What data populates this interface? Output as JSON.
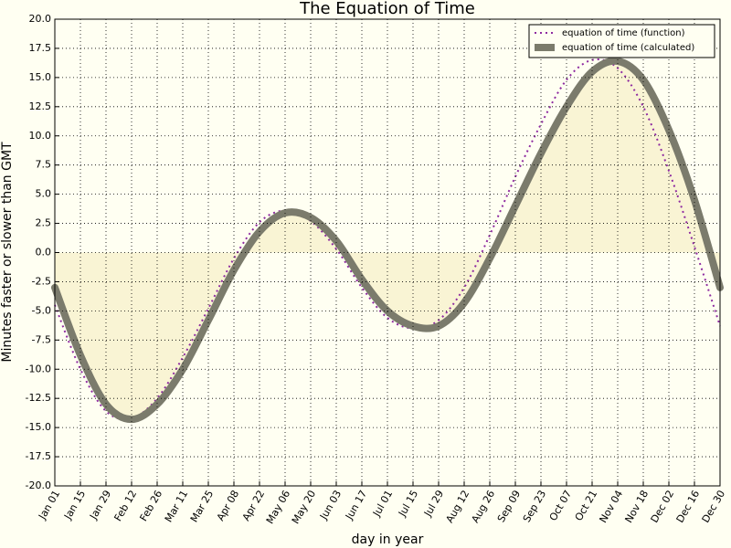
{
  "chart_data": {
    "type": "line",
    "title": "The Equation of Time",
    "x_label": "day in year",
    "y_label": "Minutes faster or slower than GMT",
    "x": [
      0,
      14,
      28,
      42,
      56,
      70,
      84,
      98,
      112,
      126,
      140,
      154,
      168,
      182,
      196,
      210,
      224,
      238,
      252,
      266,
      280,
      294,
      308,
      322,
      336,
      350,
      364
    ],
    "series": [
      {
        "name": "equation of time (function)",
        "color": "#8e2aa0",
        "style": "dotted",
        "values": [
          -4.5,
          -10.0,
          -13.6,
          -14.2,
          -12.5,
          -9.0,
          -4.8,
          -0.5,
          2.6,
          3.6,
          2.7,
          0.3,
          -3.0,
          -5.6,
          -6.5,
          -5.8,
          -3.0,
          1.5,
          6.5,
          11.0,
          14.8,
          16.5,
          15.8,
          12.5,
          7.0,
          0.5,
          -6.3
        ]
      },
      {
        "name": "equation of time (calculated)",
        "color": "#7b7b6c",
        "style": "thick",
        "fill": "#f7efc8",
        "values": [
          -3.0,
          -8.8,
          -13.0,
          -14.3,
          -13.0,
          -10.0,
          -5.8,
          -1.5,
          1.8,
          3.4,
          3.0,
          1.0,
          -2.3,
          -5.0,
          -6.3,
          -6.3,
          -4.3,
          -0.5,
          4.0,
          8.5,
          12.5,
          15.5,
          16.4,
          14.8,
          10.5,
          4.5,
          -3.0
        ]
      }
    ],
    "xlim": [
      0,
      364
    ],
    "xticks": [
      {
        "value": 0,
        "label": "Jan 01"
      },
      {
        "value": 14,
        "label": "Jan 15"
      },
      {
        "value": 28,
        "label": "Jan 29"
      },
      {
        "value": 42,
        "label": "Feb 12"
      },
      {
        "value": 56,
        "label": "Feb 26"
      },
      {
        "value": 70,
        "label": "Mar 11"
      },
      {
        "value": 84,
        "label": "Mar 25"
      },
      {
        "value": 98,
        "label": "Apr 08"
      },
      {
        "value": 112,
        "label": "Apr 22"
      },
      {
        "value": 126,
        "label": "May 06"
      },
      {
        "value": 140,
        "label": "May 20"
      },
      {
        "value": 154,
        "label": "Jun 03"
      },
      {
        "value": 168,
        "label": "Jun 17"
      },
      {
        "value": 182,
        "label": "Jul 01"
      },
      {
        "value": 196,
        "label": "Jul 15"
      },
      {
        "value": 210,
        "label": "Jul 29"
      },
      {
        "value": 224,
        "label": "Aug 12"
      },
      {
        "value": 238,
        "label": "Aug 26"
      },
      {
        "value": 252,
        "label": "Sep 09"
      },
      {
        "value": 266,
        "label": "Sep 23"
      },
      {
        "value": 280,
        "label": "Oct 07"
      },
      {
        "value": 294,
        "label": "Oct 21"
      },
      {
        "value": 308,
        "label": "Nov 04"
      },
      {
        "value": 322,
        "label": "Nov 18"
      },
      {
        "value": 336,
        "label": "Dec 02"
      },
      {
        "value": 350,
        "label": "Dec 16"
      },
      {
        "value": 364,
        "label": "Dec 30"
      }
    ],
    "ylim": [
      -20,
      20
    ],
    "yticks": [
      {
        "value": -20,
        "label": "-20.0"
      },
      {
        "value": -17.5,
        "label": "-17.5"
      },
      {
        "value": -15,
        "label": "-15.0"
      },
      {
        "value": -12.5,
        "label": "-12.5"
      },
      {
        "value": -10,
        "label": "-10.0"
      },
      {
        "value": -7.5,
        "label": "-7.5"
      },
      {
        "value": -5,
        "label": "-5.0"
      },
      {
        "value": -2.5,
        "label": "-2.5"
      },
      {
        "value": 0,
        "label": "0.0"
      },
      {
        "value": 2.5,
        "label": "2.5"
      },
      {
        "value": 5,
        "label": "5.0"
      },
      {
        "value": 7.5,
        "label": "7.5"
      },
      {
        "value": 10,
        "label": "10.0"
      },
      {
        "value": 12.5,
        "label": "12.5"
      },
      {
        "value": 15,
        "label": "15.0"
      },
      {
        "value": 17.5,
        "label": "17.5"
      },
      {
        "value": 20,
        "label": "20.0"
      }
    ],
    "grid": true,
    "legend": "upper right"
  }
}
